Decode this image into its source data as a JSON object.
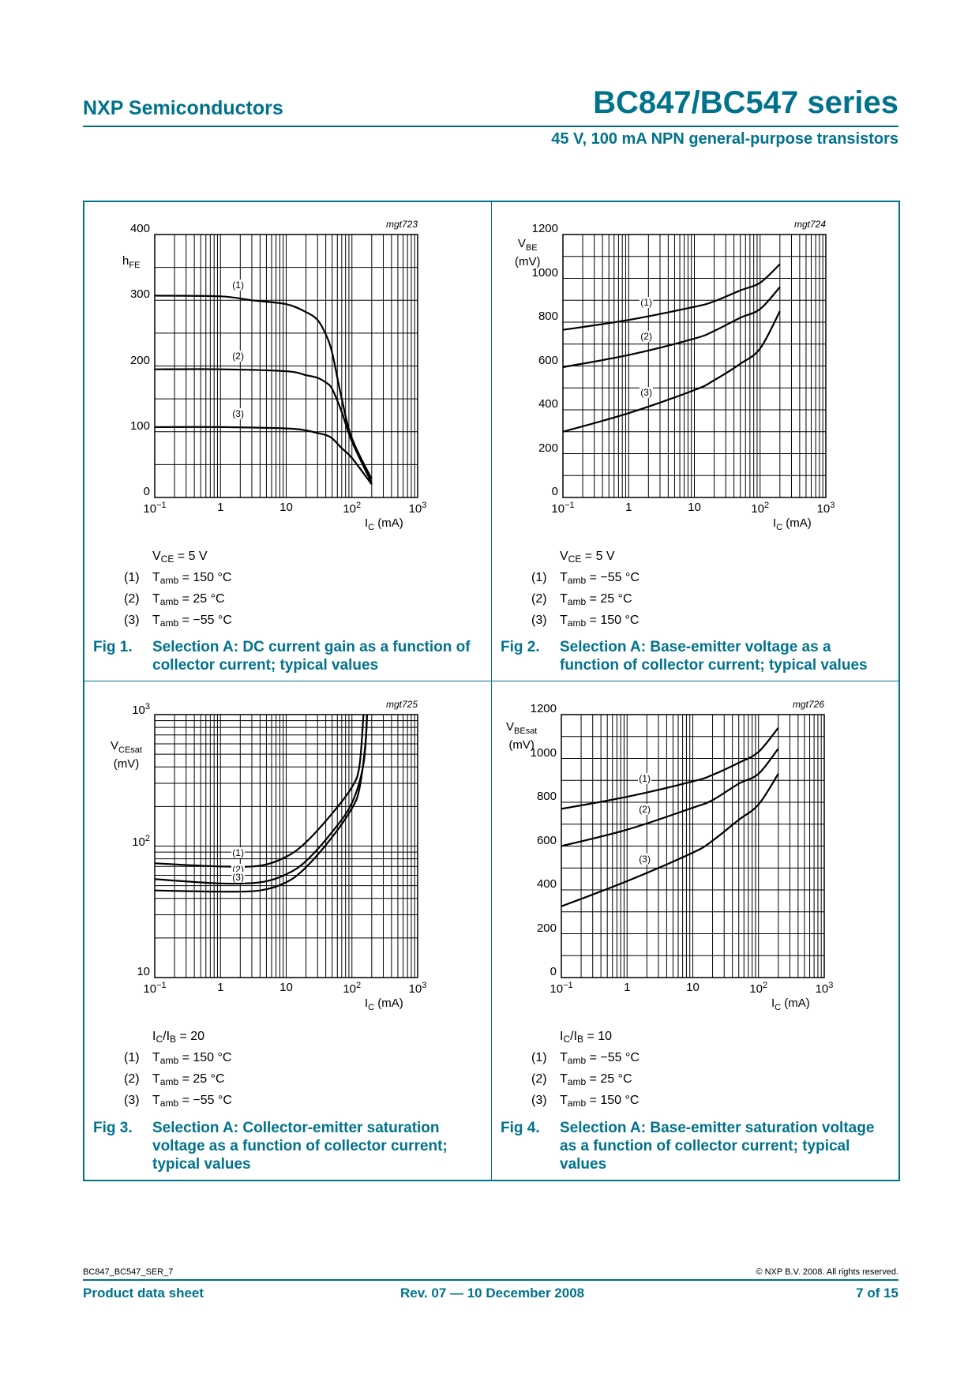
{
  "header": {
    "company": "NXP Semiconductors",
    "title": "BC847/BC547 series",
    "subtitle": "45 V, 100 mA NPN general-purpose transistors"
  },
  "figures": [
    {
      "label": "Fig 1.",
      "caption": [
        "Selection A: DC current gain as a function of",
        "collector current; typical values"
      ],
      "condition": [
        {
          "t": "V"
        },
        {
          "sub": "CE"
        },
        {
          "t": " = 5 V"
        }
      ],
      "legend": [
        {
          "num": "(1)",
          "t": "T",
          "sub": "amb",
          "rest": " = 150 °C"
        },
        {
          "num": "(2)",
          "t": "T",
          "sub": "amb",
          "rest": " = 25 °C"
        },
        {
          "num": "(3)",
          "t": "T",
          "sub": "amb",
          "rest": " = −55 °C"
        }
      ]
    },
    {
      "label": "Fig 2.",
      "caption": [
        "Selection A: Base-emitter voltage as a",
        "function of collector current; typical values"
      ],
      "condition": [
        {
          "t": "V"
        },
        {
          "sub": "CE"
        },
        {
          "t": " = 5 V"
        }
      ],
      "legend": [
        {
          "num": "(1)",
          "t": "T",
          "sub": "amb",
          "rest": " = −55 °C"
        },
        {
          "num": "(2)",
          "t": "T",
          "sub": "amb",
          "rest": " = 25 °C"
        },
        {
          "num": "(3)",
          "t": "T",
          "sub": "amb",
          "rest": " = 150 °C"
        }
      ]
    },
    {
      "label": "Fig 3.",
      "caption": [
        "Selection A: Collector-emitter saturation",
        "voltage as a function of collector current;",
        "typical values"
      ],
      "condition": [
        {
          "t": "I"
        },
        {
          "sub": "C"
        },
        {
          "t": "/I"
        },
        {
          "sub": "B"
        },
        {
          "t": " = 20"
        }
      ],
      "legend": [
        {
          "num": "(1)",
          "t": "T",
          "sub": "amb",
          "rest": " = 150 °C"
        },
        {
          "num": "(2)",
          "t": "T",
          "sub": "amb",
          "rest": " = 25 °C"
        },
        {
          "num": "(3)",
          "t": "T",
          "sub": "amb",
          "rest": " = −55 °C"
        }
      ]
    },
    {
      "label": "Fig 4.",
      "caption": [
        "Selection A: Base-emitter saturation voltage",
        "as a function of collector current; typical",
        "values"
      ],
      "condition": [
        {
          "t": "I"
        },
        {
          "sub": "C"
        },
        {
          "t": "/I"
        },
        {
          "sub": "B"
        },
        {
          "t": " = 10"
        }
      ],
      "legend": [
        {
          "num": "(1)",
          "t": "T",
          "sub": "amb",
          "rest": " = −55 °C"
        },
        {
          "num": "(2)",
          "t": "T",
          "sub": "amb",
          "rest": " = 25 °C"
        },
        {
          "num": "(3)",
          "t": "T",
          "sub": "amb",
          "rest": " = 150 °C"
        }
      ]
    }
  ],
  "chart_data": [
    {
      "type": "line",
      "code": "mgt723",
      "xscale": "log",
      "xlim": [
        0.1,
        1000
      ],
      "xticks": [
        "10^−1",
        "1",
        "10",
        "10^2",
        "10^3"
      ],
      "xlabel": {
        "main": "I",
        "sub": "C",
        "rest": " (mA)"
      },
      "yscale": "linear",
      "ylim": [
        0,
        400
      ],
      "yticks": [
        "0",
        "100",
        "200",
        "300",
        "400"
      ],
      "ygrid_step": 50,
      "ylabel": {
        "main": "h",
        "sub": "FE",
        "rest": ""
      },
      "grid": true,
      "series": [
        {
          "name": "(1)",
          "x": [
            0.1,
            1,
            3,
            10,
            20,
            30,
            40,
            50,
            70,
            100,
            200
          ],
          "y": [
            307,
            306,
            300,
            294,
            282,
            270,
            248,
            220,
            150,
            90,
            28
          ]
        },
        {
          "name": "(2)",
          "x": [
            0.1,
            1,
            10,
            20,
            30,
            40,
            50,
            70,
            100,
            200
          ],
          "y": [
            195,
            195,
            192,
            186,
            182,
            175,
            165,
            130,
            85,
            22
          ]
        },
        {
          "name": "(3)",
          "x": [
            0.1,
            1,
            10,
            20,
            30,
            40,
            50,
            70,
            100,
            200
          ],
          "y": [
            107,
            107,
            105,
            102,
            98,
            95,
            90,
            75,
            60,
            20
          ]
        }
      ]
    },
    {
      "type": "line",
      "code": "mgt724",
      "xscale": "log",
      "xlim": [
        0.1,
        1000
      ],
      "xticks": [
        "10^−1",
        "1",
        "10",
        "10^2",
        "10^3"
      ],
      "xlabel": {
        "main": "I",
        "sub": "C",
        "rest": " (mA)"
      },
      "yscale": "linear",
      "ylim": [
        0,
        1200
      ],
      "yticks": [
        "0",
        "200",
        "400",
        "600",
        "800",
        "1000",
        "1200"
      ],
      "ygrid_step": 100,
      "ylabel": {
        "main": "V",
        "sub": "BE",
        "rest": "(mV)"
      },
      "grid": true,
      "series": [
        {
          "name": "(1)",
          "x": [
            0.1,
            1,
            10,
            20,
            50,
            100,
            200
          ],
          "y": [
            765,
            810,
            870,
            895,
            945,
            980,
            1065
          ]
        },
        {
          "name": "(2)",
          "x": [
            0.1,
            1,
            10,
            20,
            50,
            100,
            200
          ],
          "y": [
            595,
            650,
            725,
            760,
            820,
            860,
            960
          ]
        },
        {
          "name": "(3)",
          "x": [
            0.1,
            1,
            10,
            20,
            50,
            100,
            200
          ],
          "y": [
            300,
            385,
            490,
            535,
            610,
            680,
            850
          ]
        }
      ]
    },
    {
      "type": "line",
      "code": "mgt725",
      "xscale": "log",
      "xlim": [
        0.1,
        1000
      ],
      "xticks": [
        "10^−1",
        "1",
        "10",
        "10^2",
        "10^3"
      ],
      "xlabel": {
        "main": "I",
        "sub": "C",
        "rest": " (mA)"
      },
      "yscale": "log",
      "ylim": [
        10,
        1000
      ],
      "yticks": [
        "10",
        "10^2",
        "10^3"
      ],
      "ylabel": {
        "main": "V",
        "sub": "CEsat",
        "rest": "(mV)"
      },
      "grid": true,
      "series": [
        {
          "name": "(1)",
          "x": [
            0.1,
            1,
            4,
            10,
            20,
            50,
            100,
            130,
            150
          ],
          "y": [
            74,
            70,
            71,
            83,
            107,
            177,
            281,
            405,
            1000
          ]
        },
        {
          "name": "(2)",
          "x": [
            0.1,
            1,
            4,
            10,
            20,
            50,
            100,
            150,
            170
          ],
          "y": [
            56,
            52,
            53,
            61,
            77,
            128,
            213,
            422,
            1000
          ]
        },
        {
          "name": "(3)",
          "x": [
            0.1,
            1,
            4,
            10,
            20,
            50,
            100,
            130,
            160,
            170
          ],
          "y": [
            46,
            45,
            46,
            53,
            69,
            117,
            194,
            273,
            590,
            1000
          ]
        }
      ]
    },
    {
      "type": "line",
      "code": "mgt726",
      "xscale": "log",
      "xlim": [
        0.1,
        1000
      ],
      "xticks": [
        "10^−1",
        "1",
        "10",
        "10^2",
        "10^3"
      ],
      "xlabel": {
        "main": "I",
        "sub": "C",
        "rest": " (mA)"
      },
      "yscale": "linear",
      "ylim": [
        0,
        1200
      ],
      "yticks": [
        "0",
        "200",
        "400",
        "600",
        "800",
        "1000",
        "1200"
      ],
      "ygrid_step": 100,
      "ylabel": {
        "main": "V",
        "sub": "BEsat",
        "rest": "(mV)"
      },
      "grid": true,
      "series": [
        {
          "name": "(1)",
          "x": [
            0.1,
            1,
            10,
            20,
            50,
            100,
            200
          ],
          "y": [
            770,
            825,
            895,
            925,
            980,
            1030,
            1140
          ]
        },
        {
          "name": "(2)",
          "x": [
            0.1,
            1,
            10,
            20,
            50,
            100,
            200
          ],
          "y": [
            600,
            675,
            775,
            810,
            885,
            930,
            1045
          ]
        },
        {
          "name": "(3)",
          "x": [
            0.1,
            1,
            10,
            20,
            50,
            100,
            200
          ],
          "y": [
            325,
            440,
            570,
            625,
            720,
            790,
            930
          ]
        }
      ]
    }
  ],
  "footer": {
    "doc_id": "BC847_BC547_SER_7",
    "copyright": "© NXP B.V. 2008. All rights reserved.",
    "doc_type": "Product data sheet",
    "revision": "Rev. 07 — 10 December 2008",
    "page": "7 of 15"
  },
  "colors": {
    "brand": "#00728c",
    "curve": "#000000"
  }
}
